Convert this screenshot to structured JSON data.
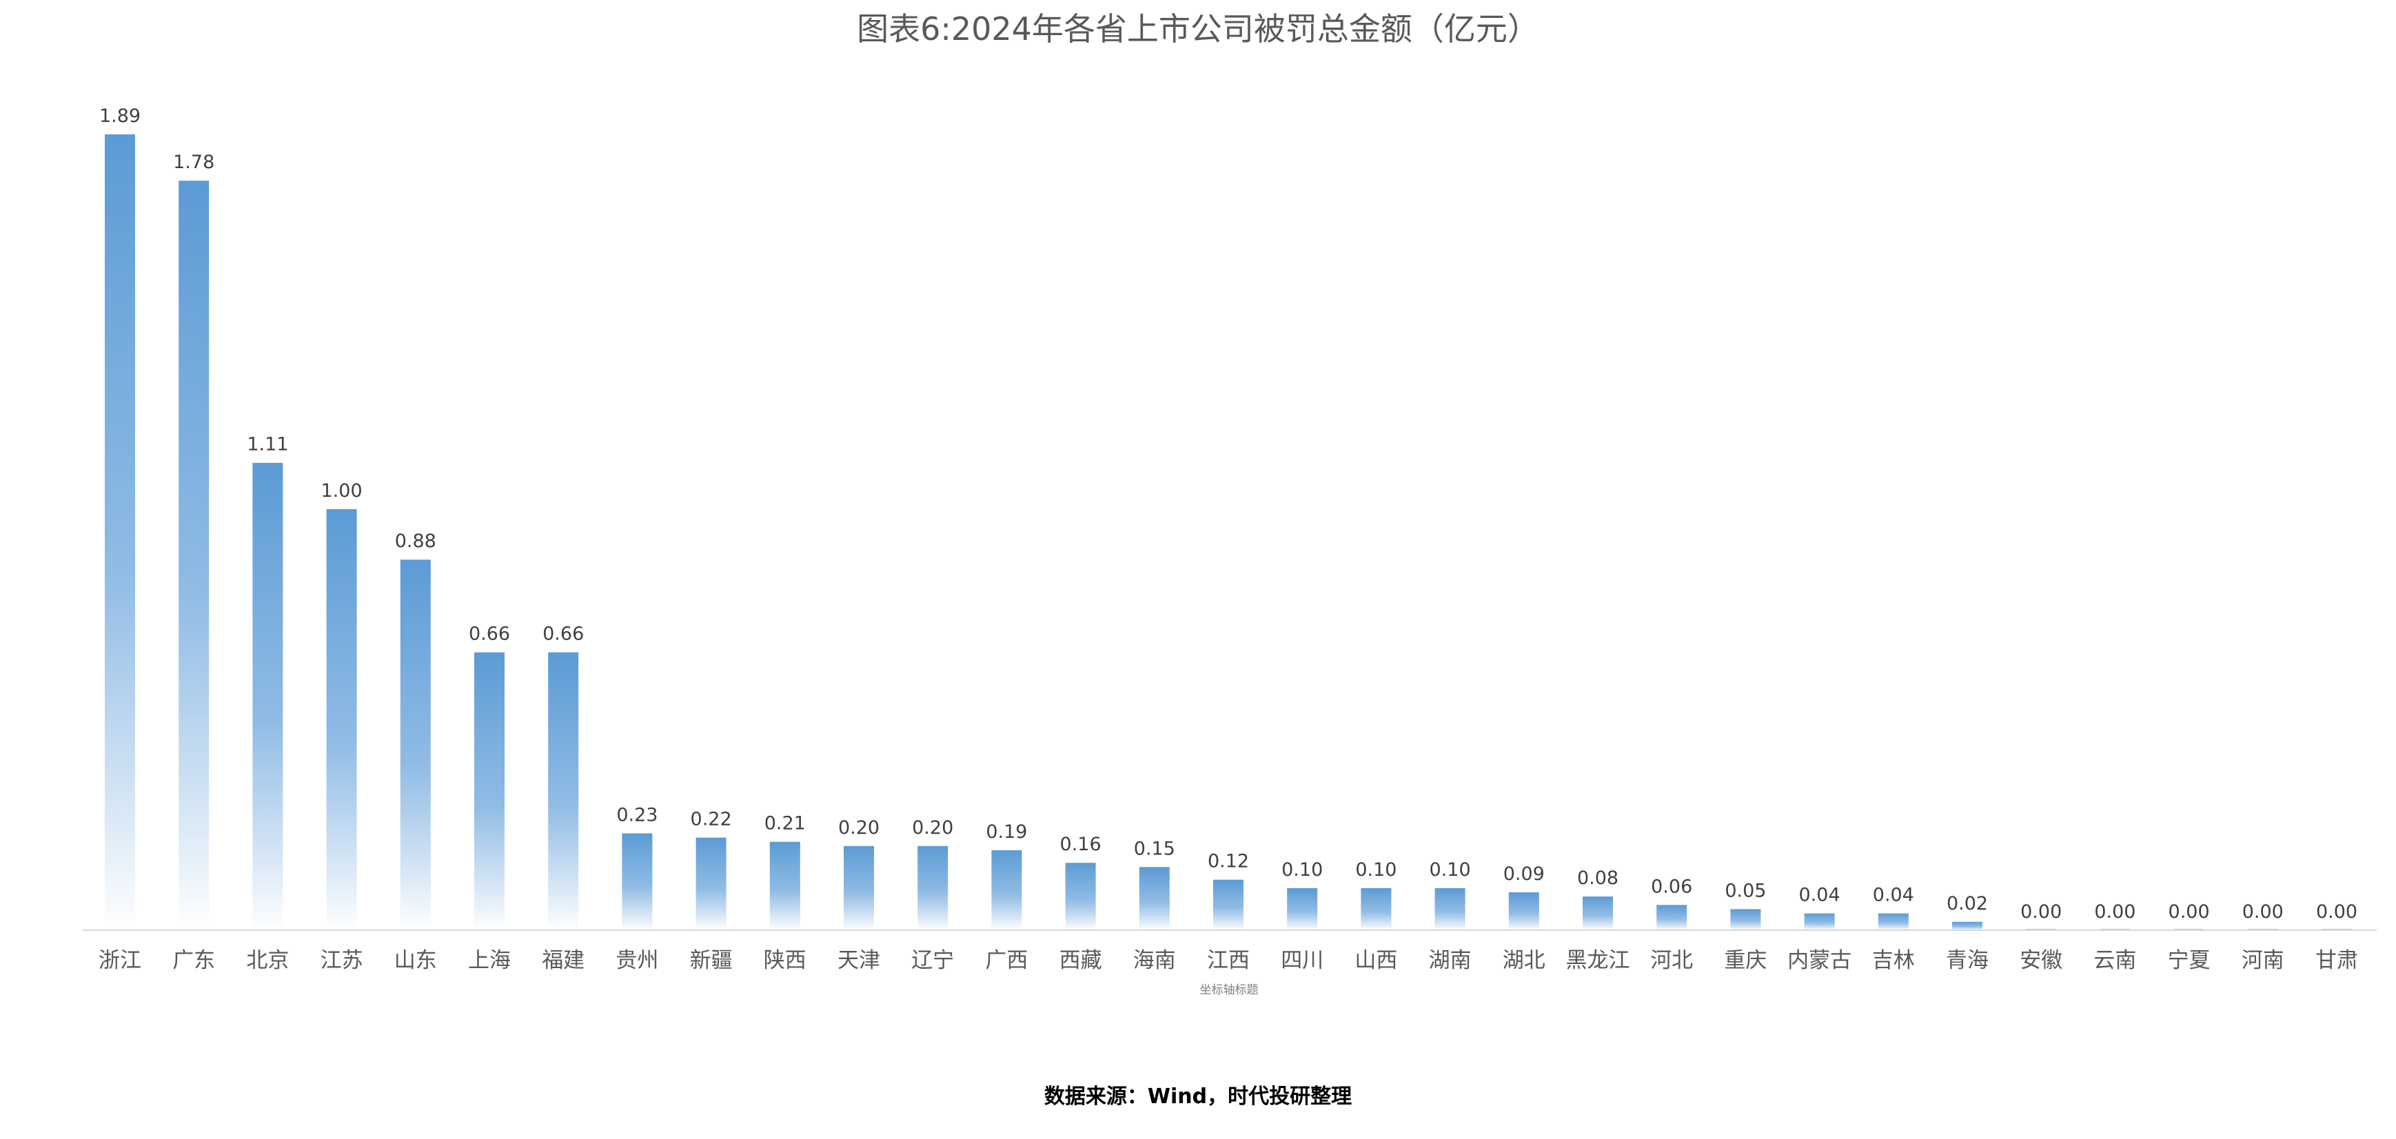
{
  "chart_data": {
    "type": "bar",
    "title": "图表6:2024年各省上市公司被罚总金额（亿元）",
    "xlabel": "坐标轴标题",
    "ylabel": "",
    "ylim": [
      0,
      1.89
    ],
    "grid": false,
    "legend": "none",
    "categories": [
      "浙江",
      "广东",
      "北京",
      "江苏",
      "山东",
      "上海",
      "福建",
      "贵州",
      "新疆",
      "陕西",
      "天津",
      "辽宁",
      "广西",
      "西藏",
      "海南",
      "江西",
      "四川",
      "山西",
      "湖南",
      "湖北",
      "黑龙江",
      "河北",
      "重庆",
      "内蒙古",
      "吉林",
      "青海",
      "安徽",
      "云南",
      "宁夏",
      "河南",
      "甘肃"
    ],
    "values": [
      1.89,
      1.78,
      1.11,
      1.0,
      0.88,
      0.66,
      0.66,
      0.23,
      0.22,
      0.21,
      0.2,
      0.2,
      0.19,
      0.16,
      0.15,
      0.12,
      0.1,
      0.1,
      0.1,
      0.09,
      0.08,
      0.06,
      0.05,
      0.04,
      0.04,
      0.02,
      0.0,
      0.0,
      0.0,
      0.0,
      0.0
    ],
    "value_labels": [
      "1.89",
      "1.78",
      "1.11",
      "1.00",
      "0.88",
      "0.66",
      "0.66",
      "0.23",
      "0.22",
      "0.21",
      "0.20",
      "0.20",
      "0.19",
      "0.16",
      "0.15",
      "0.12",
      "0.10",
      "0.10",
      "0.10",
      "0.09",
      "0.08",
      "0.06",
      "0.05",
      "0.04",
      "0.04",
      "0.02",
      "0.00",
      "0.00",
      "0.00",
      "0.00",
      "0.00"
    ],
    "bar_color": "#5b9bd5",
    "axis_color": "#d9d9d9"
  },
  "source_note": "数据来源：Wind，时代投研整理"
}
